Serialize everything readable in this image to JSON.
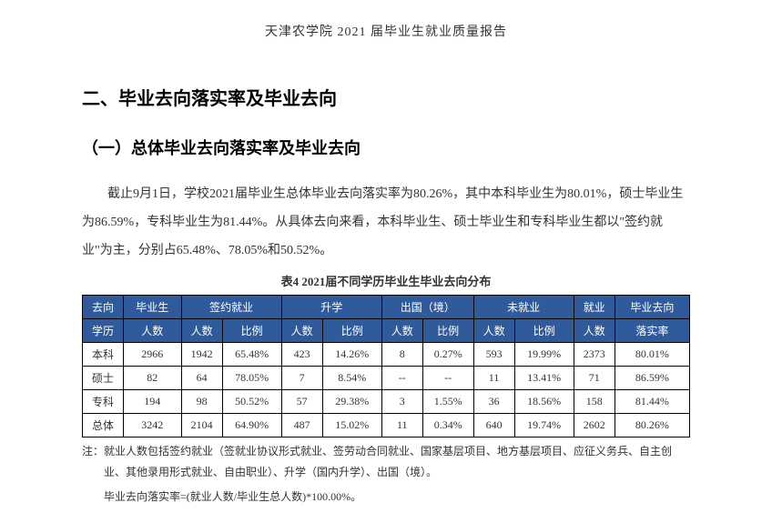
{
  "header": {
    "doc_title": "天津农学院 2021 届毕业生就业质量报告"
  },
  "section": {
    "heading": "二、毕业去向落实率及毕业去向",
    "subheading": "（一）总体毕业去向落实率及毕业去向",
    "paragraph": "截止9月1日，学校2021届毕业生总体毕业去向落实率为80.26%，其中本科毕业生为80.01%，硕士毕业生为86.59%，专科毕业生为81.44%。从具体去向来看，本科毕业生、硕士毕业生和专科毕业生都以\"签约就业\"为主，分别占65.48%、78.05%和50.52%。"
  },
  "table": {
    "caption": "表4 2021届不同学历毕业生毕业去向分布",
    "header_row1": {
      "col1": "去向",
      "col2": "毕业生",
      "col3": "签约就业",
      "col4": "升学",
      "col5": "出国（境）",
      "col6": "未就业",
      "col7": "就业",
      "col8": "毕业去向"
    },
    "header_row2": {
      "col1": "学历",
      "col2": "人数",
      "sub_count": "人数",
      "sub_ratio": "比例",
      "col7": "人数",
      "col8": "落实率"
    },
    "rows": [
      {
        "level": "本科",
        "grad_count": "2966",
        "sign_count": "1942",
        "sign_ratio": "65.48%",
        "study_count": "423",
        "study_ratio": "14.26%",
        "abroad_count": "8",
        "abroad_ratio": "0.27%",
        "unemp_count": "593",
        "unemp_ratio": "19.99%",
        "emp_count": "2373",
        "rate": "80.01%"
      },
      {
        "level": "硕士",
        "grad_count": "82",
        "sign_count": "64",
        "sign_ratio": "78.05%",
        "study_count": "7",
        "study_ratio": "8.54%",
        "abroad_count": "--",
        "abroad_ratio": "--",
        "unemp_count": "11",
        "unemp_ratio": "13.41%",
        "emp_count": "71",
        "rate": "86.59%"
      },
      {
        "level": "专科",
        "grad_count": "194",
        "sign_count": "98",
        "sign_ratio": "50.52%",
        "study_count": "57",
        "study_ratio": "29.38%",
        "abroad_count": "3",
        "abroad_ratio": "1.55%",
        "unemp_count": "36",
        "unemp_ratio": "18.56%",
        "emp_count": "158",
        "rate": "81.44%"
      },
      {
        "level": "总体",
        "grad_count": "3242",
        "sign_count": "2104",
        "sign_ratio": "64.90%",
        "study_count": "487",
        "study_ratio": "15.02%",
        "abroad_count": "11",
        "abroad_ratio": "0.34%",
        "unemp_count": "640",
        "unemp_ratio": "19.74%",
        "emp_count": "2602",
        "rate": "80.26%"
      }
    ],
    "footnote1": "注：就业人数包括签约就业（签就业协议形式就业、签劳动合同就业、国家基层项目、地方基层项目、应征义务兵、自主创业、其他录用形式就业、自由职业）、升学（国内升学）、出国（境）。",
    "footnote2": "毕业去向落实率=(就业人数/毕业生总人数)*100.00%。"
  },
  "styling": {
    "header_bg": "#2f5b9c",
    "header_text_color": "#ffffff",
    "border_color": "#000000",
    "body_text_color": "#333333"
  }
}
